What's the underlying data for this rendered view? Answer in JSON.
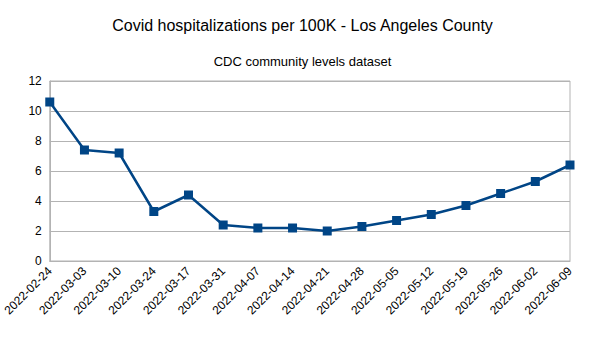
{
  "chart_data": {
    "type": "line",
    "title": "Covid hospitalizations per 100K - Los Angeles County",
    "subtitle": "CDC community levels dataset",
    "categories": [
      "2022-02-24",
      "2022-03-03",
      "2022-03-10",
      "2022-03-24",
      "2022-03-17",
      "2022-03-31",
      "2022-04-07",
      "2022-04-14",
      "2022-04-21",
      "2022-04-28",
      "2022-05-05",
      "2022-05-12",
      "2022-05-19",
      "2022-05-26",
      "2022-06-02",
      "2022-06-09"
    ],
    "values": [
      10.6,
      7.4,
      7.2,
      3.3,
      4.4,
      2.4,
      2.2,
      2.2,
      2.0,
      2.3,
      2.7,
      3.1,
      3.7,
      4.5,
      5.3,
      6.4
    ],
    "color": "#004586",
    "marker": "square",
    "line_style": "solid",
    "ylim": [
      0,
      12
    ],
    "yticks": [
      0,
      2,
      4,
      6,
      8,
      10,
      12
    ],
    "grid": true
  }
}
